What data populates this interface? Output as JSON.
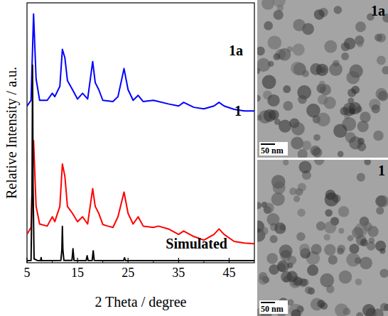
{
  "chart_data": {
    "type": "line",
    "x_label": "2 Theta / degree",
    "y_label": "Relative Intensity / a.u.",
    "xlim": [
      5,
      50
    ],
    "xticks": [
      5,
      15,
      25,
      35,
      45
    ],
    "ylim": [
      0,
      100
    ],
    "tick_labels": "x",
    "grid": false,
    "series": [
      {
        "name": "1a",
        "color": "#0000ff",
        "x": [
          5,
          5.8,
          6.3,
          6.8,
          7.5,
          9,
          10,
          10.5,
          11.5,
          12,
          12.5,
          13,
          14,
          15,
          16,
          17,
          18,
          18.5,
          19.2,
          20,
          22,
          23,
          24.2,
          25,
          26,
          27,
          28,
          30,
          33,
          35,
          36,
          38,
          40,
          42,
          43,
          44,
          46,
          48,
          50
        ],
        "values": [
          60.3,
          62.5,
          95.7,
          70.7,
          62.5,
          62.5,
          65.2,
          63.9,
          67.9,
          82.1,
          78.8,
          70.1,
          66.6,
          63.0,
          65.2,
          63.0,
          77.4,
          69.3,
          66.6,
          62.5,
          62.0,
          63.9,
          74.7,
          66.6,
          62.5,
          64.4,
          62.0,
          62.5,
          61.1,
          60.3,
          61.7,
          59.8,
          59.2,
          60.3,
          61.7,
          60.3,
          59.0,
          58.4,
          58.4
        ]
      },
      {
        "name": "1",
        "color": "#ff0000",
        "x": [
          5,
          5.8,
          6.3,
          6.8,
          7.5,
          9,
          10,
          10.5,
          11.5,
          12,
          12.5,
          13,
          14,
          15,
          16,
          17,
          18,
          18.5,
          19.2,
          20,
          21,
          22,
          23,
          24.2,
          25,
          26,
          27,
          28,
          30,
          31,
          33,
          35,
          36,
          38,
          40,
          42,
          43,
          44,
          46,
          48,
          50
        ],
        "values": [
          10.9,
          13.6,
          47.0,
          21.7,
          14.9,
          14.1,
          17.7,
          15.8,
          21.7,
          38.0,
          33.2,
          21.7,
          19.0,
          15.8,
          17.7,
          14.9,
          28.5,
          21.7,
          19.0,
          14.7,
          14.1,
          13.6,
          17.7,
          27.2,
          19.0,
          14.9,
          17.7,
          14.1,
          13.6,
          14.1,
          13.0,
          10.9,
          12.2,
          10.1,
          8.7,
          10.9,
          13.0,
          10.9,
          8.2,
          7.6,
          7.3
        ]
      },
      {
        "name": "Simulated",
        "color": "#000000",
        "x": [
          5,
          5.8,
          6.0,
          6.1,
          6.2,
          6.4,
          7,
          7.7,
          7.8,
          7.9,
          11.7,
          11.9,
          12.0,
          12.1,
          12.3,
          13.9,
          14.1,
          14.3,
          16.7,
          16.9,
          17.1,
          17.9,
          18.1,
          18.3,
          20.5,
          24.1,
          24.3,
          24.5,
          30,
          50
        ],
        "values": [
          0.8,
          0.9,
          30.0,
          76.0,
          30.0,
          1.5,
          0.9,
          0.8,
          2.0,
          0.8,
          0.9,
          5.0,
          14.0,
          5.0,
          0.9,
          0.9,
          5.4,
          0.9,
          0.8,
          2.7,
          0.8,
          0.9,
          4.6,
          0.9,
          0.8,
          0.8,
          1.9,
          0.8,
          0.8,
          0.8
        ]
      }
    ]
  },
  "images": [
    {
      "label": "1a",
      "scale_bar": "50 nm"
    },
    {
      "label": "1",
      "scale_bar": "50 nm"
    }
  ]
}
